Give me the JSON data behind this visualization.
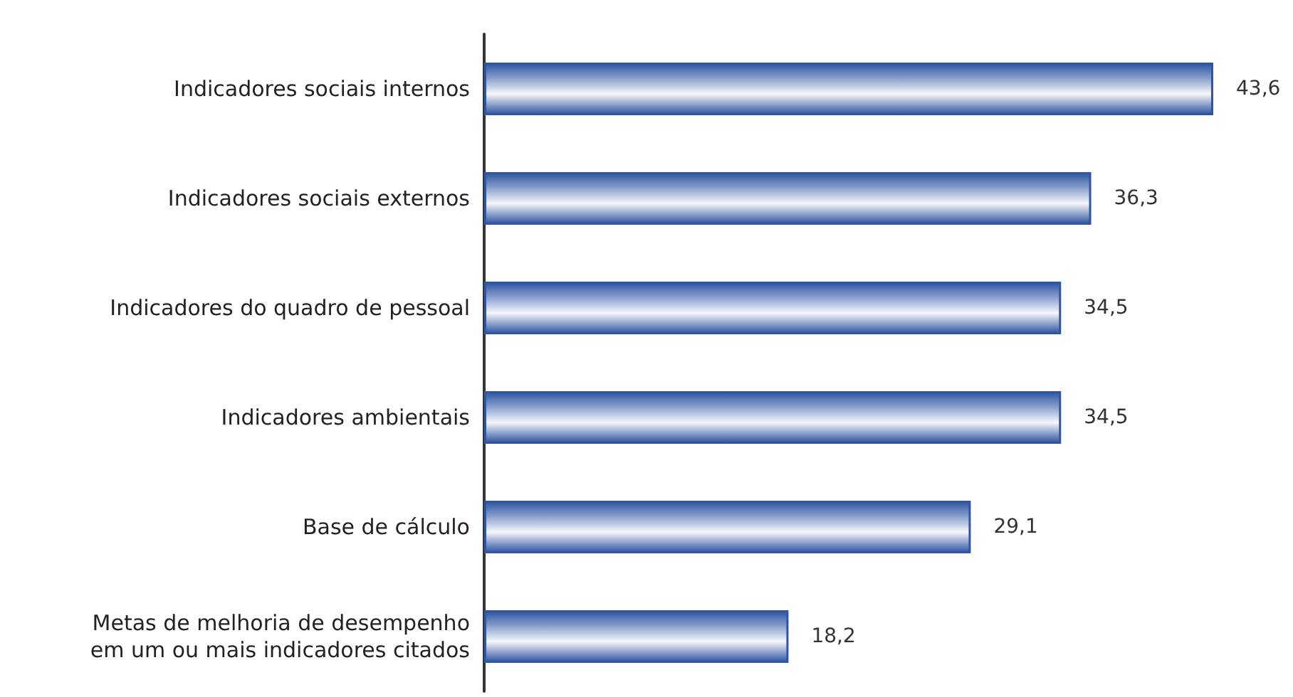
{
  "chart_data": {
    "type": "bar",
    "orientation": "horizontal",
    "categories": [
      "Indicadores sociais internos",
      "Indicadores sociais externos",
      "Indicadores do quadro de pessoal",
      "Indicadores ambientais",
      "Base de cálculo",
      "Metas de melhoria de desempenho\nem um ou mais indicadores citados"
    ],
    "values": [
      43.6,
      36.3,
      34.5,
      34.5,
      29.1,
      18.2
    ],
    "value_labels": [
      "43,6",
      "36,3",
      "34,5",
      "34,5",
      "29,1",
      "18,2"
    ],
    "color": "#2f56a3",
    "tick_labels": "y"
  }
}
